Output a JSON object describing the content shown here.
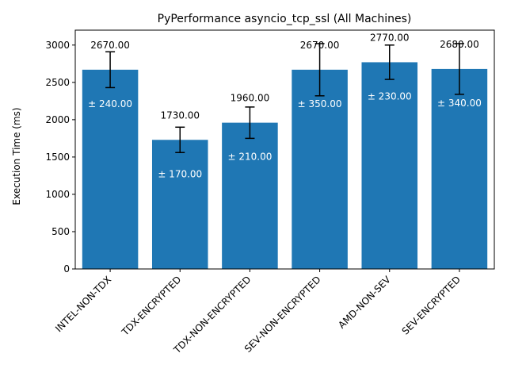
{
  "chart_data": {
    "type": "bar",
    "title": "PyPerformance asyncio_tcp_ssl (All Machines)",
    "xlabel": "",
    "ylabel": "Execution Time (ms)",
    "ylim": [
      0,
      3200
    ],
    "yticks": [
      0,
      500,
      1000,
      1500,
      2000,
      2500,
      3000
    ],
    "grid": false,
    "bar_color": "#1f77b4",
    "categories": [
      "INTEL-NON-TDX",
      "TDX-ENCRYPTED",
      "TDX-NON-ENCRYPTED",
      "SEV-NON-ENCRYPTED",
      "AMD-NON-SEV",
      "SEV-ENCRYPTED"
    ],
    "values": [
      2670,
      1730,
      1960,
      2670,
      2770,
      2680
    ],
    "errors": [
      240,
      170,
      210,
      350,
      230,
      340
    ],
    "value_labels": [
      "2670.00",
      "1730.00",
      "1960.00",
      "2670.00",
      "2770.00",
      "2680.00"
    ],
    "error_labels": [
      "± 240.00",
      "± 170.00",
      "± 210.00",
      "± 350.00",
      "± 230.00",
      "± 340.00"
    ]
  }
}
